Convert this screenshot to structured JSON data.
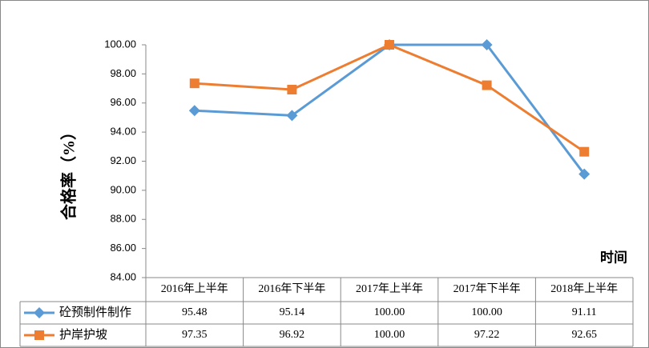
{
  "chart_data": {
    "type": "line",
    "y_label": "合格率（%）",
    "x_label": "时间",
    "categories": [
      "2016年上半年",
      "2016年下半年",
      "2017年上半年",
      "2017年下半年",
      "2018年上半年"
    ],
    "series": [
      {
        "name": "砼预制件制作",
        "color": "#5b9bd5",
        "marker": "diamond",
        "values": [
          95.48,
          95.14,
          100,
          100,
          91.11
        ],
        "value_labels": [
          "95.48",
          "95.14",
          "100.00",
          "100.00",
          "91.11"
        ]
      },
      {
        "name": "护岸护坡",
        "color": "#ed7d31",
        "marker": "square",
        "values": [
          97.35,
          96.92,
          100,
          97.22,
          92.65
        ],
        "value_labels": [
          "97.35",
          "96.92",
          "100.00",
          "97.22",
          "92.65"
        ]
      }
    ],
    "ylim": [
      84,
      100
    ],
    "yticks": [
      {
        "value": 84,
        "label": "84.00"
      },
      {
        "value": 86,
        "label": "86.00"
      },
      {
        "value": 88,
        "label": "88.00"
      },
      {
        "value": 90,
        "label": "90.00"
      },
      {
        "value": 92,
        "label": "92.00"
      },
      {
        "value": 94,
        "label": "94.00"
      },
      {
        "value": 96,
        "label": "96.00"
      },
      {
        "value": 98,
        "label": "98.00"
      },
      {
        "value": 100,
        "label": "100.00"
      }
    ],
    "data_table": true
  }
}
